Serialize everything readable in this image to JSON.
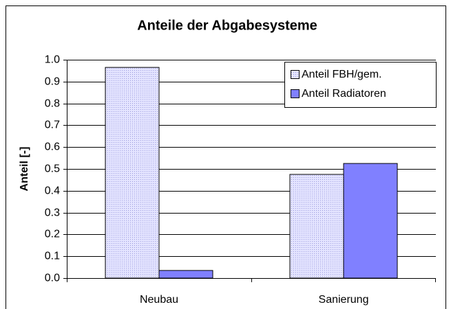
{
  "chart_data": {
    "type": "bar",
    "title": "Anteile der Abgabesysteme",
    "ylabel": "Anteil [-]",
    "categories": [
      "Neubau",
      "Sanierung"
    ],
    "series": [
      {
        "name": "Anteil FBH/gem.",
        "color": "#ccccff",
        "values": [
          0.965,
          0.475
        ]
      },
      {
        "name": "Anteil Radiatoren",
        "color": "#8080ff",
        "values": [
          0.035,
          0.525
        ]
      }
    ],
    "ylim": [
      0,
      1
    ],
    "yticks": [
      {
        "value": 0,
        "label": "0.0"
      },
      0.1,
      0.2,
      0.3,
      0.4,
      0.5,
      0.6,
      0.7,
      0.8,
      0.9,
      {
        "value": 1,
        "label": "1.0"
      }
    ],
    "grid": true,
    "legend": "top-right"
  }
}
